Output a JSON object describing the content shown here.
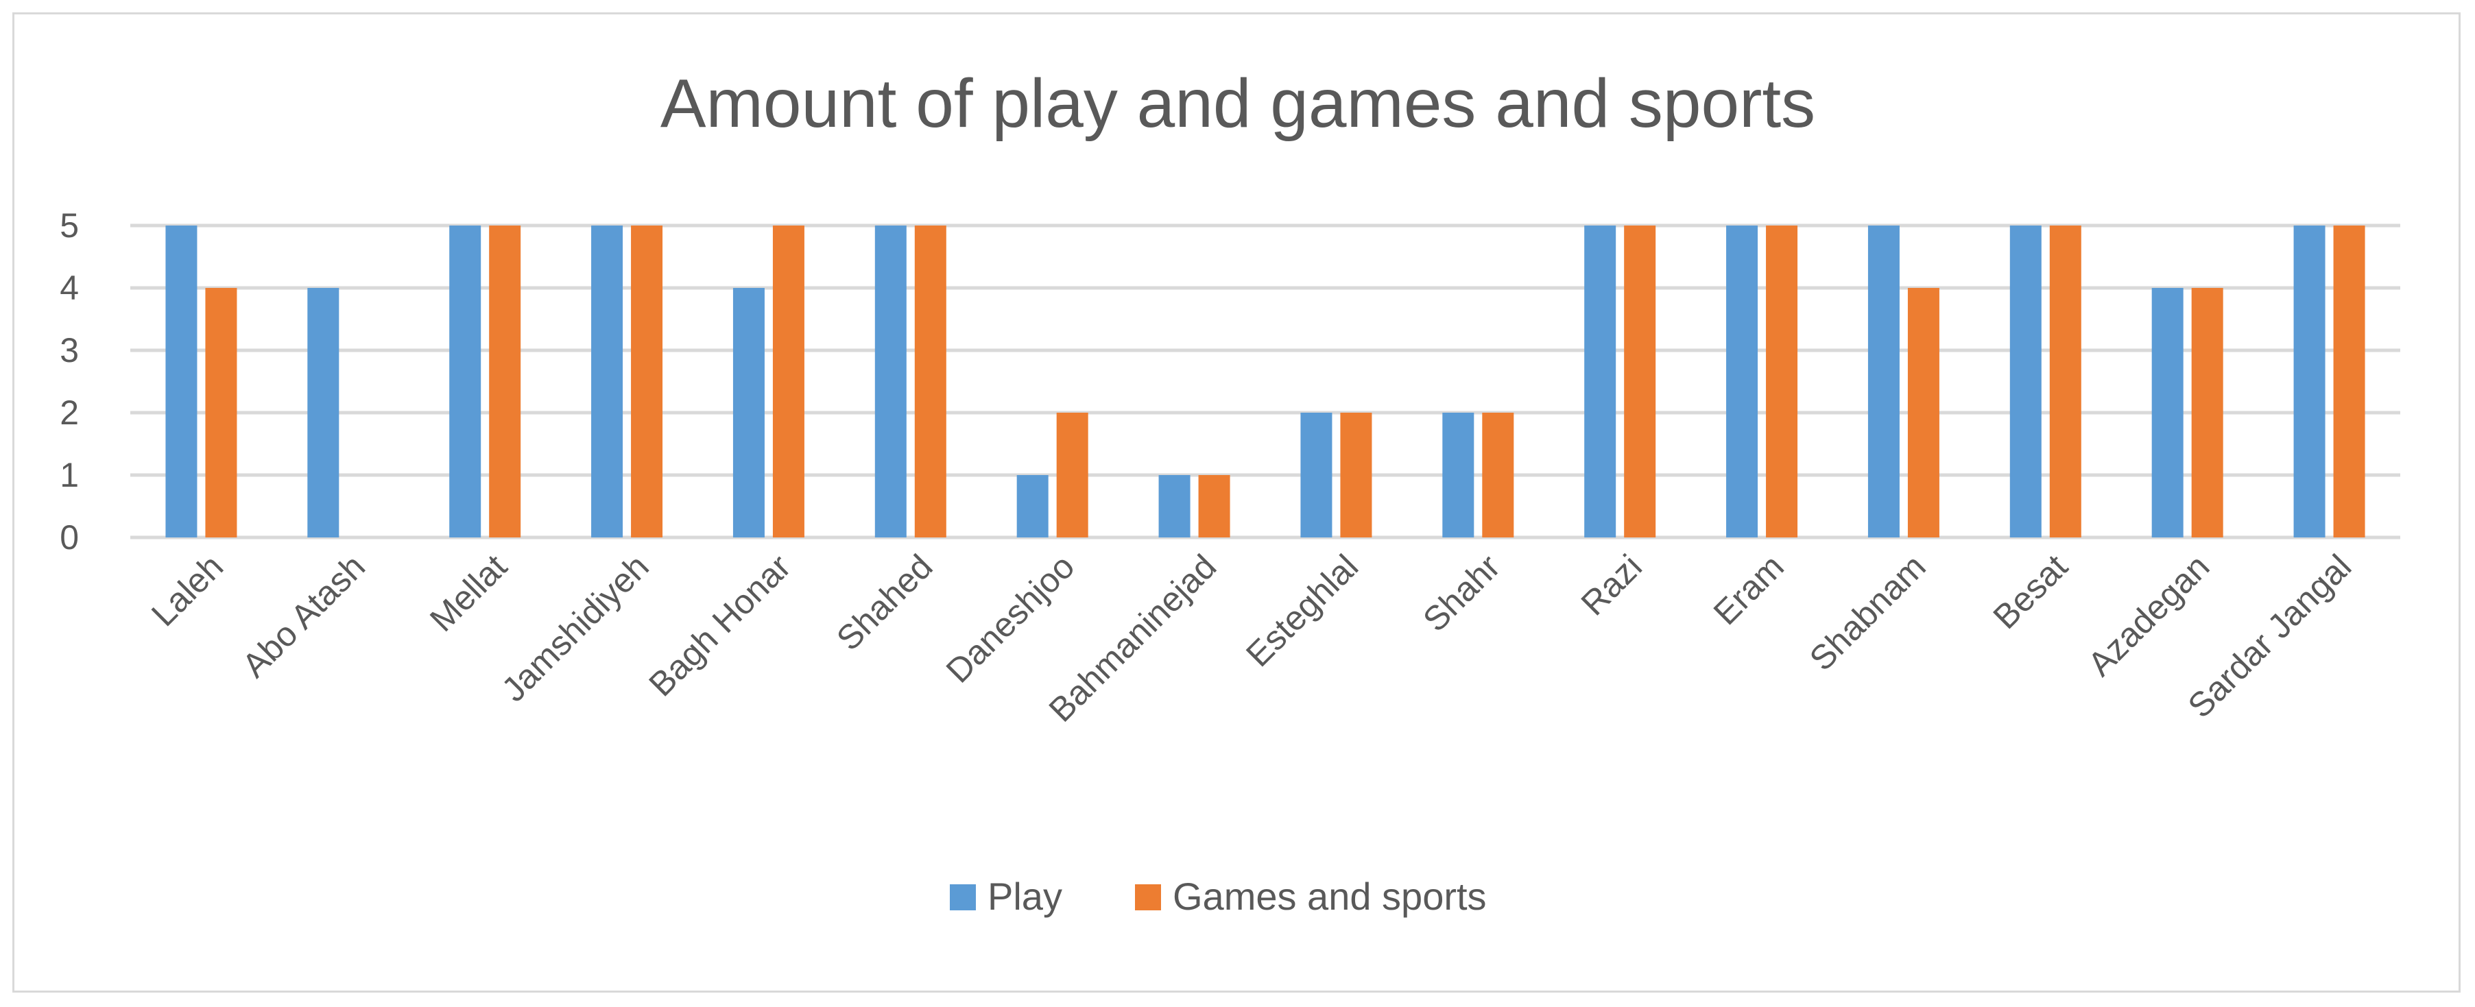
{
  "chart_data": {
    "type": "bar",
    "title": "Amount of play and games and sports",
    "categories": [
      "Laleh",
      "Abo Atash",
      "Mellat",
      "Jamshidiyeh",
      "Bagh Honar",
      "Shahed",
      "Daneshjoo",
      "Bahmaninejad",
      "Esteghlal",
      "Shahr",
      "Razi",
      "Eram",
      "Shabnam",
      "Besat",
      "Azadegan",
      "Sardar Jangal"
    ],
    "series": [
      {
        "name": "Play",
        "color": "#5b9bd5",
        "values": [
          5,
          4,
          5,
          5,
          4,
          5,
          1,
          1,
          2,
          2,
          5,
          5,
          5,
          5,
          4,
          5
        ]
      },
      {
        "name": "Games and sports",
        "color": "#ed7d31",
        "values": [
          4,
          0,
          5,
          5,
          5,
          5,
          2,
          1,
          2,
          2,
          5,
          5,
          4,
          5,
          4,
          5
        ]
      }
    ],
    "ylim": [
      0,
      5
    ],
    "yticks": [
      0,
      1,
      2,
      3,
      4,
      5
    ],
    "xlabel": "",
    "ylabel": "",
    "grid": true,
    "legend_position": "bottom",
    "colors": {
      "title": "#595959",
      "tick_label": "#595959",
      "gridline": "#d9d9d9",
      "border": "#d9d9d9"
    }
  }
}
